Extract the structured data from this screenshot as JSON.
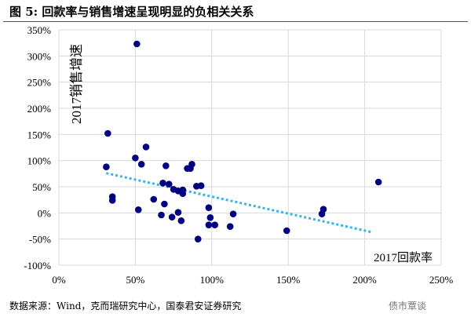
{
  "title": "图 5:  回款率与销售增速呈现明显的负相关关系",
  "source": "数据来源：Wind，克而瑞研究中心，国泰君安证券研究",
  "watermark": "债市覃谈",
  "chart_data": {
    "type": "scatter",
    "xlabel": "2017回款率",
    "ylabel": "2017销售增速",
    "xlim": [
      0,
      250
    ],
    "ylim": [
      -100,
      350
    ],
    "xticks": [
      "0%",
      "50%",
      "100%",
      "150%",
      "200%",
      "250%"
    ],
    "yticks": [
      "-100%",
      "-50%",
      "0%",
      "50%",
      "100%",
      "150%",
      "200%",
      "250%",
      "300%",
      "350%"
    ],
    "grid": true,
    "point_color": "#000080",
    "trend_color": "#33b5e5",
    "trendline": {
      "x": [
        31,
        205
      ],
      "y": [
        76,
        -37
      ]
    },
    "points": [
      [
        51,
        323
      ],
      [
        32,
        152
      ],
      [
        57,
        126
      ],
      [
        50,
        105
      ],
      [
        31,
        88
      ],
      [
        54,
        93
      ],
      [
        70,
        90
      ],
      [
        87,
        93
      ],
      [
        84,
        85
      ],
      [
        86,
        85
      ],
      [
        68,
        57
      ],
      [
        72,
        55
      ],
      [
        75,
        45
      ],
      [
        78,
        42
      ],
      [
        81,
        44
      ],
      [
        81,
        37
      ],
      [
        90,
        51
      ],
      [
        93,
        52
      ],
      [
        35,
        31
      ],
      [
        35,
        24
      ],
      [
        62,
        26
      ],
      [
        69,
        17
      ],
      [
        52,
        6
      ],
      [
        98,
        10
      ],
      [
        67,
        -4
      ],
      [
        74,
        -8
      ],
      [
        78,
        1
      ],
      [
        80,
        -15
      ],
      [
        99,
        -9
      ],
      [
        98,
        -23
      ],
      [
        102,
        -23
      ],
      [
        114,
        -2
      ],
      [
        112,
        -26
      ],
      [
        91,
        -50
      ],
      [
        149,
        -34
      ],
      [
        173,
        7
      ],
      [
        172,
        -2
      ],
      [
        209,
        59
      ]
    ]
  }
}
